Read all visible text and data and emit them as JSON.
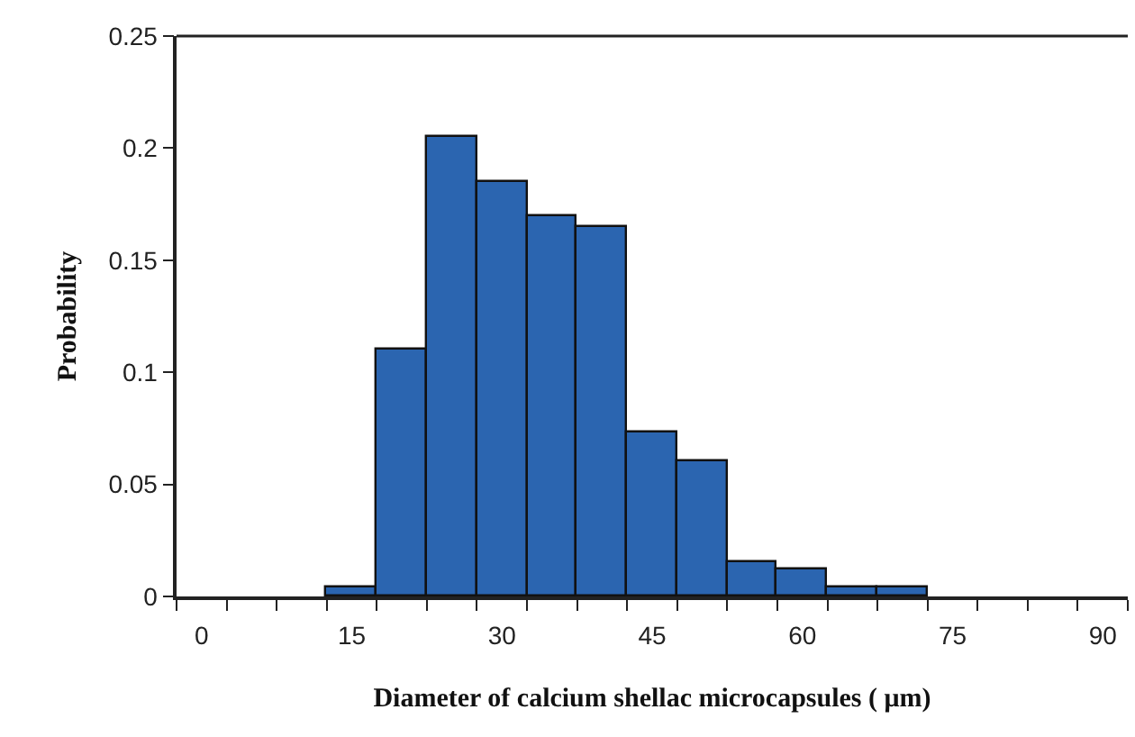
{
  "chart_data": {
    "type": "histogram",
    "xlabel": "Diameter of calcium shellac microcapsules ( μm)",
    "ylabel": "Probability",
    "bins": [
      12.5,
      17.5,
      22.5,
      27.5,
      32.5,
      37.5,
      42.5,
      47.5,
      52.5,
      57.5,
      62.5,
      67.5,
      72.5
    ],
    "values": [
      0.004,
      0.11,
      0.205,
      0.185,
      0.17,
      0.165,
      0.073,
      0.06,
      0.015,
      0.012,
      0.004,
      0.004
    ],
    "color": "#2b65b0",
    "xlim": [
      -2.5,
      92.5
    ],
    "xticks": [
      0,
      15,
      30,
      45,
      60,
      75,
      90
    ],
    "ylim": [
      0,
      0.25
    ],
    "yticks": [
      0,
      0.05,
      0.1,
      0.15,
      0.2,
      0.25
    ],
    "grid": false,
    "legend": false
  }
}
